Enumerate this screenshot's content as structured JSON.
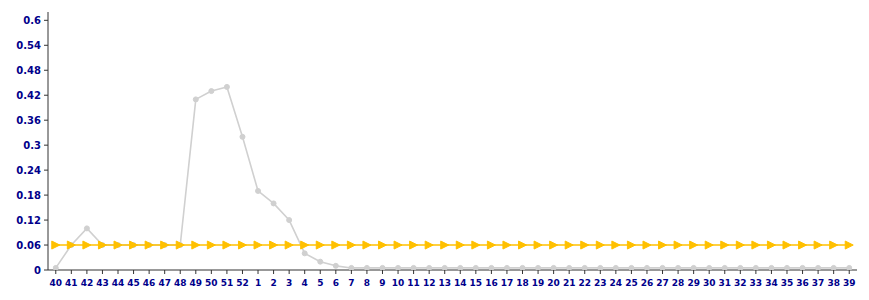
{
  "chart_data": {
    "type": "line",
    "categories": [
      "40",
      "41",
      "42",
      "43",
      "44",
      "45",
      "46",
      "47",
      "48",
      "49",
      "50",
      "51",
      "52",
      "1",
      "2",
      "3",
      "4",
      "5",
      "6",
      "7",
      "8",
      "9",
      "10",
      "11",
      "12",
      "13",
      "14",
      "15",
      "16",
      "17",
      "18",
      "19",
      "20",
      "21",
      "22",
      "23",
      "24",
      "25",
      "26",
      "27",
      "28",
      "29",
      "30",
      "31",
      "32",
      "33",
      "34",
      "35",
      "36",
      "37",
      "38",
      "39"
    ],
    "series": [
      {
        "color": "#d0d0d0",
        "marker": "circle",
        "values": [
          0.005,
          0.06,
          0.1,
          0.06,
          0.06,
          0.06,
          0.06,
          0.06,
          0.06,
          0.41,
          0.43,
          0.44,
          0.32,
          0.19,
          0.16,
          0.12,
          0.04,
          0.02,
          0.01,
          0.005,
          0.005,
          0.005,
          0.005,
          0.005,
          0.005,
          0.005,
          0.005,
          0.005,
          0.005,
          0.005,
          0.005,
          0.005,
          0.005,
          0.005,
          0.005,
          0.005,
          0.005,
          0.005,
          0.005,
          0.005,
          0.005,
          0.005,
          0.005,
          0.005,
          0.005,
          0.005,
          0.005,
          0.005,
          0.005,
          0.005,
          0.005,
          0.005
        ]
      },
      {
        "color": "#FFC000",
        "marker": "triangle-right",
        "values": [
          0.06,
          0.06,
          0.06,
          0.06,
          0.06,
          0.06,
          0.06,
          0.06,
          0.06,
          0.06,
          0.06,
          0.06,
          0.06,
          0.06,
          0.06,
          0.06,
          0.06,
          0.06,
          0.06,
          0.06,
          0.06,
          0.06,
          0.06,
          0.06,
          0.06,
          0.06,
          0.06,
          0.06,
          0.06,
          0.06,
          0.06,
          0.06,
          0.06,
          0.06,
          0.06,
          0.06,
          0.06,
          0.06,
          0.06,
          0.06,
          0.06,
          0.06,
          0.06,
          0.06,
          0.06,
          0.06,
          0.06,
          0.06,
          0.06,
          0.06,
          0.06,
          0.06
        ]
      }
    ],
    "ylim": [
      0,
      0.62
    ],
    "yticks": [
      0,
      0.06,
      0.12,
      0.18,
      0.24,
      0.3,
      0.36,
      0.42,
      0.48,
      0.54,
      0.6
    ],
    "grid": false
  }
}
